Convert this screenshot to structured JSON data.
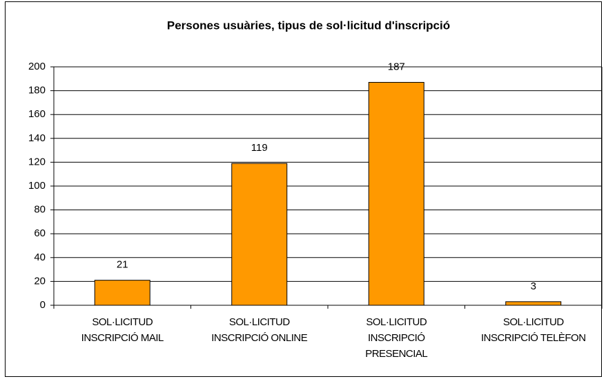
{
  "chart_data": {
    "type": "bar",
    "title": "Persones usuàries, tipus de sol·licitud d'inscripció",
    "categories": [
      [
        "SOL·LICITUD",
        "INSCRIPCIÓ MAIL"
      ],
      [
        "SOL·LICITUD",
        "INSCRIPCIÓ ONLINE"
      ],
      [
        "SOL·LICITUD",
        "INSCRIPCIÓ",
        "PRESENCIAL"
      ],
      [
        "SOL·LICITUD",
        "INSCRIPCIÓ TELÈFON"
      ]
    ],
    "values": [
      21,
      119,
      187,
      3
    ],
    "color": "#ff9900",
    "ylim": [
      0,
      200
    ],
    "yticks": [
      0,
      20,
      40,
      60,
      80,
      100,
      120,
      140,
      160,
      180,
      200
    ],
    "grid": true
  }
}
